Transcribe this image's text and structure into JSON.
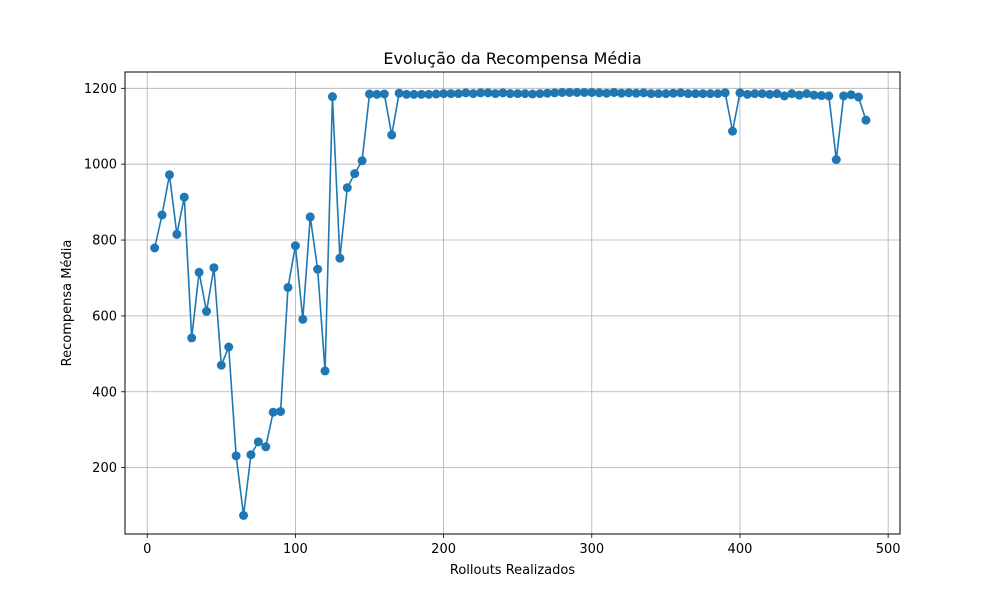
{
  "chart_data": {
    "type": "line",
    "title": "Evolução da Recompensa Média",
    "xlabel": "Rollouts Realizados",
    "ylabel": "Recompensa Média",
    "xlim": [
      -15,
      508
    ],
    "ylim": [
      25,
      1243
    ],
    "xticks": [
      0,
      100,
      200,
      300,
      400,
      500
    ],
    "yticks": [
      200,
      400,
      600,
      800,
      1000,
      1200
    ],
    "grid": true,
    "line_color": "#1f77b4",
    "marker": "circle",
    "series": [
      {
        "x": [
          5,
          10,
          15,
          20,
          25,
          30,
          35,
          40,
          45,
          50,
          55,
          60,
          65,
          70,
          75,
          80,
          85,
          90,
          95,
          100,
          105,
          110,
          115,
          120,
          125,
          130,
          135,
          140,
          145,
          150,
          155,
          160,
          165,
          170,
          175,
          180,
          185,
          190,
          195,
          200,
          205,
          210,
          215,
          220,
          225,
          230,
          235,
          240,
          245,
          250,
          255,
          260,
          265,
          270,
          275,
          280,
          285,
          290,
          295,
          300,
          305,
          310,
          315,
          320,
          325,
          330,
          335,
          340,
          345,
          350,
          355,
          360,
          365,
          370,
          375,
          380,
          385,
          390,
          395,
          400,
          405,
          410,
          415,
          420,
          425,
          430,
          435,
          440,
          445,
          450,
          455,
          460,
          465,
          470,
          475,
          480,
          485
        ],
        "values": [
          779,
          866,
          972,
          815,
          913,
          542,
          715,
          612,
          727,
          470,
          518,
          231,
          74,
          234,
          268,
          255,
          346,
          348,
          675,
          785,
          591,
          861,
          723,
          455,
          1178,
          752,
          938,
          975,
          1009,
          1185,
          1184,
          1185,
          1077,
          1187,
          1184,
          1184,
          1184,
          1184,
          1185,
          1186,
          1186,
          1186,
          1188,
          1186,
          1188,
          1188,
          1186,
          1188,
          1186,
          1186,
          1186,
          1185,
          1186,
          1187,
          1188,
          1189,
          1189,
          1189,
          1189,
          1189,
          1188,
          1187,
          1189,
          1187,
          1188,
          1187,
          1188,
          1186,
          1186,
          1186,
          1187,
          1188,
          1186,
          1186,
          1186,
          1186,
          1186,
          1188,
          1087,
          1188,
          1184,
          1186,
          1186,
          1184,
          1186,
          1180,
          1186,
          1182,
          1186,
          1182,
          1181,
          1180,
          1012,
          1180,
          1183,
          1177,
          1116
        ]
      }
    ]
  }
}
